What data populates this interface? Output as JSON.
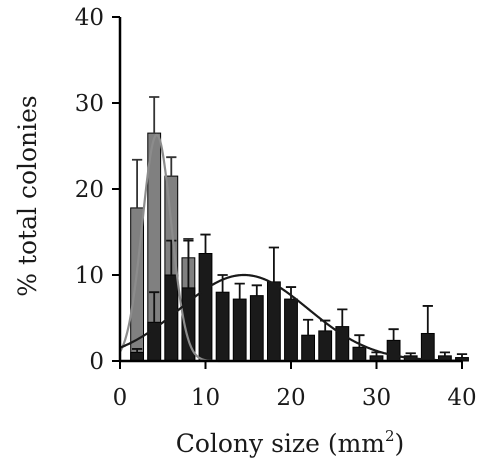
{
  "chart_data": {
    "type": "bar",
    "xlabel": "Colony size (mm",
    "xlabel_sup": "2",
    "xlabel_close": ")",
    "ylabel": "% total colonies",
    "xlim": [
      0,
      40
    ],
    "ylim": [
      0,
      40
    ],
    "x_ticks": [
      0,
      10,
      20,
      30,
      40
    ],
    "y_ticks": [
      0,
      10,
      20,
      30,
      40
    ],
    "bin_width": 2,
    "grid": false,
    "legend": "none",
    "colors": {
      "series_a": "#808080",
      "series_b": "#1a1a1a",
      "curve_a": "#8c8c8c",
      "curve_b": "#1a1a1a"
    },
    "series": [
      {
        "bins": [
          {
            "x": 2,
            "value": 17.8,
            "err": 5.6
          },
          {
            "x": 4,
            "value": 26.5,
            "err": 4.2
          },
          {
            "x": 6,
            "value": 21.5,
            "err": 2.2
          },
          {
            "x": 8,
            "value": 12.0,
            "err": 2.2
          }
        ],
        "fit": {
          "mean": 4.3,
          "sd": 1.7,
          "peak": 26.3
        }
      },
      {
        "bins": [
          {
            "x": 2,
            "value": 1.0,
            "err": 0.4
          },
          {
            "x": 4,
            "value": 4.5,
            "err": 3.5
          },
          {
            "x": 6,
            "value": 10.0,
            "err": 4.0
          },
          {
            "x": 8,
            "value": 8.5,
            "err": 5.5
          },
          {
            "x": 10,
            "value": 12.5,
            "err": 2.2
          },
          {
            "x": 12,
            "value": 8.0,
            "err": 2.0
          },
          {
            "x": 14,
            "value": 7.2,
            "err": 1.8
          },
          {
            "x": 16,
            "value": 7.6,
            "err": 1.2
          },
          {
            "x": 18,
            "value": 9.2,
            "err": 4.0
          },
          {
            "x": 20,
            "value": 7.2,
            "err": 1.4
          },
          {
            "x": 22,
            "value": 3.0,
            "err": 1.8
          },
          {
            "x": 24,
            "value": 3.5,
            "err": 1.2
          },
          {
            "x": 26,
            "value": 4.0,
            "err": 2.0
          },
          {
            "x": 28,
            "value": 1.6,
            "err": 1.4
          },
          {
            "x": 30,
            "value": 0.6,
            "err": 0.4
          },
          {
            "x": 32,
            "value": 2.4,
            "err": 1.3
          },
          {
            "x": 34,
            "value": 0.6,
            "err": 0.3
          },
          {
            "x": 36,
            "value": 3.2,
            "err": 3.2
          },
          {
            "x": 38,
            "value": 0.6,
            "err": 0.4
          },
          {
            "x": 40,
            "value": 0.4,
            "err": 0.4
          }
        ],
        "fit": {
          "mean": 14.5,
          "sd": 7.5,
          "peak": 10.0
        }
      }
    ]
  }
}
